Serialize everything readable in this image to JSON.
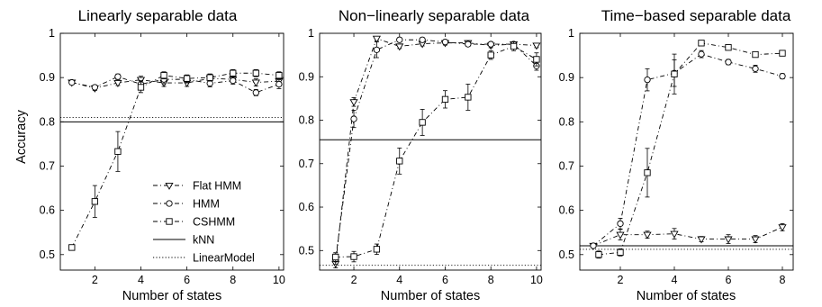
{
  "figure": {
    "ylabel": "Accuracy"
  },
  "legend": [
    {
      "label": "Flat HMM",
      "marker": "triangle-down",
      "dash": "dashdot"
    },
    {
      "label": "HMM",
      "marker": "circle",
      "dash": "dashdot"
    },
    {
      "label": "CSHMM",
      "marker": "square",
      "dash": "dashdot"
    },
    {
      "label": "kNN",
      "marker": "none",
      "dash": "solid"
    },
    {
      "label": "LinearModel",
      "marker": "none",
      "dash": "dotted"
    }
  ],
  "chart_data": [
    {
      "type": "line",
      "title": "Linearly separable data",
      "xlabel": "Number of states",
      "ylabel": "Accuracy",
      "xlim": [
        0.5,
        10.2
      ],
      "ylim": [
        0.465,
        1.0
      ],
      "xticks": [
        2,
        4,
        6,
        8,
        10
      ],
      "yticks": [
        0.5,
        0.6,
        0.7,
        0.8,
        0.9,
        1
      ],
      "ytick_labels": [
        "0.5",
        "0.6",
        "0.7",
        "0.8",
        "0.9",
        "1"
      ],
      "x": [
        1,
        2,
        3,
        4,
        5,
        6,
        7,
        8,
        9,
        10
      ],
      "series": [
        {
          "name": "Flat HMM",
          "marker": "triangle-down",
          "values": [
            0.889,
            0.876,
            0.888,
            0.895,
            0.888,
            0.888,
            0.898,
            0.896,
            0.889,
            0.892
          ],
          "err": [
            0.005,
            0.005,
            0.006,
            0.008,
            0.008,
            0.008,
            0.01,
            0.008,
            0.008,
            0.01
          ]
        },
        {
          "name": "HMM",
          "marker": "circle",
          "values": [
            0.889,
            0.878,
            0.902,
            0.885,
            0.896,
            0.896,
            0.887,
            0.893,
            0.866,
            0.885
          ],
          "err": [
            0.005,
            0.005,
            0.006,
            0.008,
            0.01,
            0.008,
            0.008,
            0.008,
            0.007,
            0.01
          ]
        },
        {
          "name": "CSHMM",
          "marker": "square",
          "values": [
            0.516,
            0.62,
            0.733,
            0.878,
            0.905,
            0.898,
            0.9,
            0.91,
            0.91,
            0.905
          ],
          "err": [
            0.004,
            0.036,
            0.045,
            0.012,
            0.008,
            0.008,
            0.008,
            0.008,
            0.008,
            0.008
          ]
        }
      ],
      "hlines": [
        {
          "name": "kNN",
          "y": 0.8,
          "x_range": [
            0.5,
            10.2
          ]
        },
        {
          "name": "LinearModel",
          "y": 0.81,
          "x_range": [
            0.5,
            10.2
          ]
        }
      ],
      "legend": "lower-right"
    },
    {
      "type": "line",
      "title": "Non−linearly separable data",
      "xlabel": "Number of states",
      "xlim": [
        0.5,
        10.2
      ],
      "ylim": [
        0.455,
        1.0
      ],
      "xticks": [
        2,
        4,
        6,
        8,
        10
      ],
      "yticks": [
        0.5,
        0.6,
        0.7,
        0.8,
        0.9,
        1
      ],
      "ytick_labels": [
        "0.5",
        "0.6",
        "0.7",
        "0.8",
        "0.9",
        "1"
      ],
      "x": [
        1,
        2,
        3,
        4,
        5,
        6,
        7,
        8,
        9,
        10
      ],
      "series": [
        {
          "name": "Flat HMM",
          "marker": "triangle-down",
          "x": [
            1.2,
            2,
            3,
            4,
            5,
            6,
            7,
            8,
            9,
            10
          ],
          "values": [
            0.47,
            0.842,
            0.988,
            0.97,
            0.976,
            0.978,
            0.978,
            0.972,
            0.975,
            0.972
          ],
          "err": [
            0.01,
            0.01,
            0.005,
            0.005,
            0.005,
            0.005,
            0.005,
            0.005,
            0.005,
            0.005
          ]
        },
        {
          "name": "HMM",
          "marker": "circle",
          "x": [
            1.2,
            2,
            3,
            4,
            5,
            6,
            7,
            8,
            9,
            10
          ],
          "values": [
            0.48,
            0.803,
            0.962,
            0.985,
            0.985,
            0.98,
            0.975,
            0.975,
            0.975,
            0.925
          ],
          "err": [
            0.012,
            0.02,
            0.018,
            0.005,
            0.005,
            0.005,
            0.005,
            0.005,
            0.005,
            0.01
          ]
        },
        {
          "name": "CSHMM",
          "marker": "square",
          "x": [
            1.2,
            2,
            3,
            4,
            5,
            6,
            7,
            8,
            9,
            10
          ],
          "values": [
            0.485,
            0.486,
            0.503,
            0.706,
            0.795,
            0.848,
            0.853,
            0.95,
            0.97,
            0.94
          ],
          "err": [
            0.01,
            0.012,
            0.012,
            0.03,
            0.03,
            0.02,
            0.03,
            0.01,
            0.01,
            0.015
          ]
        }
      ],
      "hlines": [
        {
          "name": "kNN",
          "y": 0.755,
          "x_range": [
            0.5,
            10.2
          ]
        },
        {
          "name": "LinearModel",
          "y": 0.466,
          "x_range": [
            0.5,
            10.2
          ]
        }
      ]
    },
    {
      "type": "line",
      "title": "Time−based separable data",
      "xlabel": "Number of states",
      "xlim": [
        0.5,
        8.4
      ],
      "ylim": [
        0.465,
        1.0
      ],
      "xticks": [
        2,
        4,
        6,
        8
      ],
      "yticks": [
        0.5,
        0.6,
        0.7,
        0.8,
        0.9,
        1
      ],
      "ytick_labels": [
        "0.5",
        "0.6",
        "0.7",
        "0.8",
        "0.9",
        "1"
      ],
      "x": [
        1,
        2,
        3,
        4,
        5,
        6,
        7,
        8
      ],
      "series": [
        {
          "name": "Flat HMM",
          "marker": "triangle-down",
          "x": [
            1,
            2,
            3,
            4,
            5,
            6,
            7,
            8
          ],
          "values": [
            0.52,
            0.545,
            0.545,
            0.547,
            0.535,
            0.535,
            0.535,
            0.562
          ],
          "err": [
            0.005,
            0.012,
            0.008,
            0.012,
            0.006,
            0.01,
            0.008,
            0.008
          ]
        },
        {
          "name": "HMM",
          "marker": "circle",
          "x": [
            1,
            2,
            3,
            4,
            5,
            6,
            7,
            8
          ],
          "values": [
            0.52,
            0.57,
            0.895,
            0.91,
            0.953,
            0.935,
            0.92,
            0.903
          ],
          "err": [
            0.005,
            0.012,
            0.025,
            0.03,
            0.008,
            0.006,
            0.008,
            0.006
          ]
        },
        {
          "name": "CSHMM",
          "marker": "square",
          "x": [
            1.2,
            2,
            3,
            4,
            5,
            6,
            7,
            8
          ],
          "values": [
            0.5,
            0.505,
            0.685,
            0.908,
            0.978,
            0.968,
            0.952,
            0.955
          ],
          "err": [
            0.008,
            0.008,
            0.055,
            0.045,
            0.005,
            0.005,
            0.006,
            0.006
          ]
        }
      ],
      "hlines": [
        {
          "name": "kNN",
          "y": 0.52,
          "x_range": [
            0.5,
            8.4
          ]
        },
        {
          "name": "LinearModel",
          "y": 0.512,
          "x_range": [
            0.5,
            8.4
          ]
        }
      ]
    }
  ]
}
